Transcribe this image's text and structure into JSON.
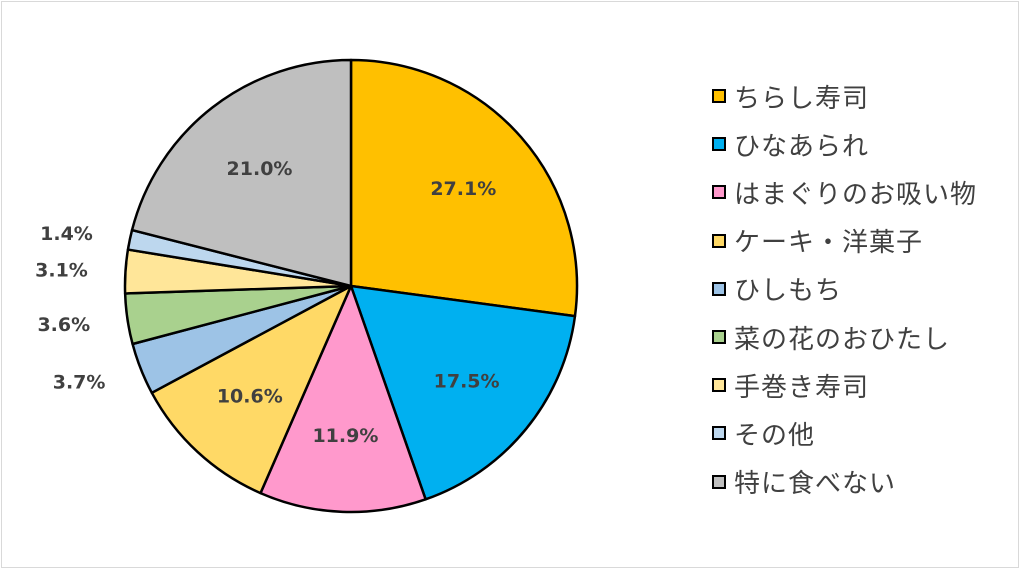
{
  "chart_data": {
    "type": "pie",
    "title": "",
    "slices": [
      {
        "label": "ちらし寿司",
        "value": 27.1,
        "display": "27.1%",
        "color": "#FFC000"
      },
      {
        "label": "ひなあられ",
        "value": 17.5,
        "display": "17.5%",
        "color": "#00B0F0"
      },
      {
        "label": "はまぐりのお吸い物",
        "value": 11.9,
        "display": "11.9%",
        "color": "#FF99CC"
      },
      {
        "label": "ケーキ・洋菓子",
        "value": 10.6,
        "display": "10.6%",
        "color": "#FFD966"
      },
      {
        "label": "ひしもち",
        "value": 3.7,
        "display": "3.7%",
        "color": "#9DC3E6"
      },
      {
        "label": "菜の花のおひたし",
        "value": 3.6,
        "display": "3.6%",
        "color": "#A9D18E"
      },
      {
        "label": "手巻き寿司",
        "value": 3.1,
        "display": "3.1%",
        "color": "#FFE699"
      },
      {
        "label": "その他",
        "value": 1.4,
        "display": "1.4%",
        "color": "#BDD7EE"
      },
      {
        "label": "特に食べない",
        "value": 21.0,
        "display": "21.0%",
        "color": "#BFBFBF"
      }
    ],
    "legend_position": "right",
    "data_labels": true
  }
}
